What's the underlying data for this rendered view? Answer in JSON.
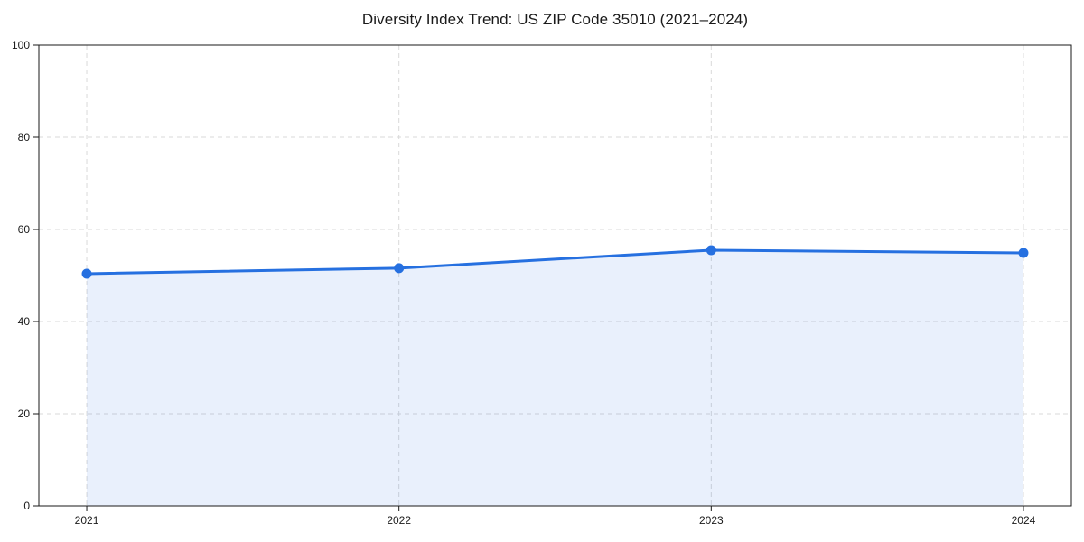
{
  "chart_data": {
    "type": "area",
    "title": "Diversity Index Trend: US ZIP Code 35010 (2021–2024)",
    "x": [
      "2021",
      "2022",
      "2023",
      "2024"
    ],
    "series": [
      {
        "name": "Diversity Index",
        "values": [
          50.4,
          51.6,
          55.5,
          54.9
        ]
      }
    ],
    "xlabel": "",
    "ylabel": "",
    "ylim": [
      0,
      100
    ],
    "yticks": [
      0,
      20,
      40,
      60,
      80,
      100
    ],
    "grid": true,
    "grid_style": "dashed",
    "legend": "none",
    "colors": {
      "line": "#2670e0",
      "marker": "#2670e0",
      "fill_rgba": "rgba(38, 112, 224, 0.10)",
      "grid": "#d9d9d9",
      "spine": "#1a1a1a",
      "text": "#1a1a1a",
      "background": "#ffffff"
    }
  }
}
